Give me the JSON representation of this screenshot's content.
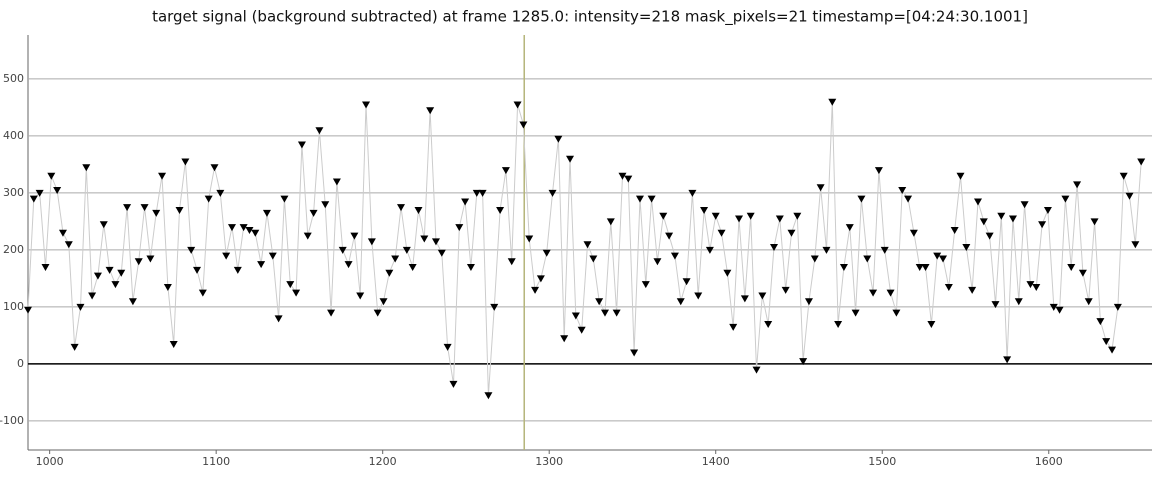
{
  "chart_data": {
    "type": "scatter",
    "title": "target signal (background subtracted) at frame 1285.0: intensity=218 mask_pixels=21 timestamp=[04:24:30.1001]",
    "xlim": [
      987,
      1662
    ],
    "ylim": [
      -151,
      577
    ],
    "xticks": [
      1000,
      1100,
      1200,
      1300,
      1400,
      1500,
      1600
    ],
    "yticks": [
      -100,
      0,
      100,
      200,
      300,
      400,
      500
    ],
    "grid": true,
    "marker_x": 1285,
    "marker_color": "#b5b57a",
    "series": [
      {
        "color": "#000000",
        "line_color": "#cccccc",
        "x": [
          987,
          990.5,
          994,
          997.5,
          1001,
          1004.5,
          1008,
          1011.5,
          1015,
          1018.5,
          1022,
          1025.5,
          1029,
          1032.5,
          1036,
          1039.5,
          1043,
          1046.5,
          1050,
          1053.5,
          1057,
          1060.5,
          1064,
          1067.5,
          1071,
          1074.5,
          1078,
          1081.5,
          1085,
          1088.5,
          1092,
          1095.5,
          1099,
          1102.5,
          1106,
          1109.5,
          1113,
          1116.5,
          1120,
          1123.5,
          1127,
          1130.5,
          1134,
          1137.5,
          1141,
          1144.5,
          1148,
          1151.5,
          1155,
          1158.5,
          1162,
          1165.5,
          1169,
          1172.5,
          1176,
          1179.5,
          1183,
          1186.5,
          1190,
          1193.5,
          1197,
          1200.5,
          1204,
          1207.5,
          1211,
          1214.5,
          1218,
          1221.5,
          1225,
          1228.5,
          1232,
          1235.5,
          1239,
          1242.5,
          1246,
          1249.5,
          1253,
          1256.5,
          1260,
          1263.5,
          1267,
          1270.5,
          1274,
          1277.5,
          1281,
          1284.5,
          1288,
          1291.5,
          1295,
          1298.5,
          1302,
          1305.5,
          1309,
          1312.5,
          1316,
          1319.5,
          1323,
          1326.5,
          1330,
          1333.5,
          1337,
          1340.5,
          1344,
          1347.5,
          1351,
          1354.5,
          1358,
          1361.5,
          1365,
          1368.5,
          1372,
          1375.5,
          1379,
          1382.5,
          1386,
          1389.5,
          1393,
          1396.5,
          1400,
          1403.5,
          1407,
          1410.5,
          1414,
          1417.5,
          1421,
          1424.5,
          1428,
          1431.5,
          1435,
          1438.5,
          1442,
          1445.5,
          1449,
          1452.5,
          1456,
          1459.5,
          1463,
          1466.5,
          1470,
          1473.5,
          1477,
          1480.5,
          1484,
          1487.5,
          1491,
          1494.5,
          1498,
          1501.5,
          1505,
          1508.5,
          1512,
          1515.5,
          1519,
          1522.5,
          1526,
          1529.5,
          1533,
          1536.5,
          1540,
          1543.5,
          1547,
          1550.5,
          1554,
          1557.5,
          1561,
          1564.5,
          1568,
          1571.5,
          1575,
          1578.5,
          1582,
          1585.5,
          1589,
          1592.5,
          1596,
          1599.5,
          1603,
          1606.5,
          1610,
          1613.5,
          1617,
          1620.5,
          1624,
          1627.5,
          1631,
          1634.5,
          1638,
          1641.5,
          1645,
          1648.5,
          1652,
          1655.5
        ],
        "values": [
          95,
          290,
          300,
          170,
          330,
          305,
          230,
          210,
          30,
          100,
          345,
          120,
          155,
          245,
          165,
          140,
          160,
          275,
          110,
          180,
          275,
          185,
          265,
          330,
          135,
          35,
          270,
          355,
          200,
          165,
          125,
          290,
          345,
          300,
          190,
          240,
          165,
          240,
          235,
          230,
          175,
          265,
          190,
          80,
          290,
          140,
          125,
          385,
          225,
          265,
          410,
          280,
          90,
          320,
          200,
          175,
          225,
          120,
          455,
          215,
          90,
          110,
          160,
          185,
          275,
          200,
          170,
          270,
          220,
          445,
          215,
          195,
          30,
          -35,
          240,
          285,
          170,
          300,
          300,
          -55,
          100,
          270,
          340,
          180,
          455,
          420,
          220,
          130,
          150,
          195,
          300,
          395,
          45,
          360,
          85,
          60,
          210,
          185,
          110,
          90,
          250,
          90,
          330,
          325,
          20,
          290,
          140,
          290,
          180,
          260,
          225,
          190,
          110,
          145,
          300,
          120,
          270,
          200,
          260,
          230,
          160,
          65,
          255,
          115,
          260,
          -10,
          120,
          70,
          205,
          255,
          130,
          230,
          260,
          5,
          110,
          185,
          310,
          200,
          460,
          70,
          170,
          240,
          90,
          290,
          185,
          125,
          340,
          200,
          125,
          90,
          305,
          290,
          230,
          170,
          170,
          70,
          190,
          185,
          135,
          235,
          330,
          205,
          130,
          285,
          250,
          225,
          105,
          260,
          8,
          255,
          110,
          280,
          140,
          135,
          245,
          270,
          100,
          95,
          290,
          170,
          315,
          160,
          110,
          250,
          75,
          40,
          25,
          100,
          330,
          295,
          210,
          355
        ]
      }
    ]
  }
}
